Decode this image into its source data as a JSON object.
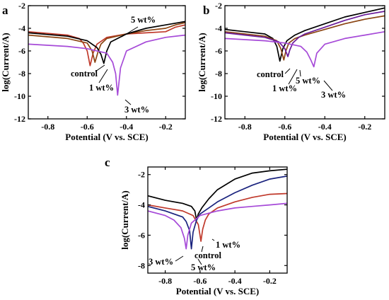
{
  "chart_data": [
    {
      "type": "line",
      "panel_label": "a",
      "xlabel": "Potential (V vs. SCE)",
      "ylabel": "log(Current/A)",
      "xlim": [
        -0.9,
        -0.1
      ],
      "ylim": [
        -12,
        -2
      ],
      "xticks": [
        -0.8,
        -0.6,
        -0.4,
        -0.2
      ],
      "xtick_labels": [
        "-0.8",
        "-0.6",
        "-0.4",
        "-0.2"
      ],
      "yticks": [
        -12,
        -10,
        -8,
        -6,
        -4,
        -2
      ],
      "ytick_labels": [
        "-12",
        "-10",
        "-8",
        "-6",
        "-4",
        "-2"
      ],
      "grid": false,
      "series": [
        {
          "name": "control",
          "color": "#c0392b",
          "x": [
            -0.9,
            -0.8,
            -0.7,
            -0.64,
            -0.62,
            -0.6,
            -0.585,
            -0.57,
            -0.55,
            -0.5,
            -0.4,
            -0.3,
            -0.2,
            -0.15,
            -0.1
          ],
          "y": [
            -4.3,
            -4.45,
            -4.6,
            -4.9,
            -5.3,
            -6.0,
            -7.3,
            -6.2,
            -5.4,
            -4.8,
            -4.5,
            -4.4,
            -4.3,
            -3.9,
            -3.7
          ]
        },
        {
          "name": "1 wt%",
          "color": "#8b4513",
          "x": [
            -0.9,
            -0.8,
            -0.7,
            -0.6,
            -0.575,
            -0.56,
            -0.545,
            -0.53,
            -0.5,
            -0.4,
            -0.3,
            -0.2,
            -0.15,
            -0.1
          ],
          "y": [
            -4.6,
            -4.75,
            -4.9,
            -5.3,
            -6.0,
            -7.0,
            -6.1,
            -5.4,
            -4.9,
            -4.5,
            -4.2,
            -4.0,
            -3.7,
            -3.5
          ]
        },
        {
          "name": "5 wt%",
          "color": "#000000",
          "x": [
            -0.9,
            -0.8,
            -0.7,
            -0.6,
            -0.55,
            -0.53,
            -0.515,
            -0.5,
            -0.48,
            -0.4,
            -0.3,
            -0.2,
            -0.1
          ],
          "y": [
            -4.4,
            -4.55,
            -4.7,
            -5.1,
            -5.7,
            -6.3,
            -7.1,
            -6.0,
            -5.2,
            -4.5,
            -4.0,
            -3.7,
            -3.4
          ]
        },
        {
          "name": "3 wt%",
          "color": "#a64ad8",
          "x": [
            -0.9,
            -0.8,
            -0.7,
            -0.6,
            -0.5,
            -0.47,
            -0.455,
            -0.445,
            -0.43,
            -0.4,
            -0.3,
            -0.2,
            -0.1
          ],
          "y": [
            -5.4,
            -5.5,
            -5.6,
            -5.8,
            -6.2,
            -7.0,
            -8.0,
            -9.9,
            -7.5,
            -6.0,
            -5.2,
            -4.8,
            -4.6
          ]
        }
      ],
      "annotations": [
        "5 wt%",
        "control",
        "1 wt%",
        "3 wt%"
      ]
    },
    {
      "type": "line",
      "panel_label": "b",
      "xlabel": "Potential (V vs. SCE)",
      "ylabel": "log(Current/A)",
      "xlim": [
        -0.9,
        -0.1
      ],
      "ylim": [
        -12,
        -2
      ],
      "xticks": [
        -0.8,
        -0.6,
        -0.4,
        -0.2
      ],
      "xtick_labels": [
        "-0.8",
        "-0.6",
        "-0.4",
        "-0.2"
      ],
      "yticks": [
        -12,
        -10,
        -8,
        -6,
        -4,
        -2
      ],
      "ytick_labels": [
        "-12",
        "-10",
        "-8",
        "-6",
        "-4",
        "-2"
      ],
      "grid": false,
      "series": [
        {
          "name": "control",
          "color": "#000000",
          "x": [
            -0.9,
            -0.8,
            -0.7,
            -0.66,
            -0.64,
            -0.625,
            -0.61,
            -0.59,
            -0.55,
            -0.5,
            -0.4,
            -0.3,
            -0.2,
            -0.1
          ],
          "y": [
            -4.1,
            -4.3,
            -4.5,
            -4.9,
            -5.6,
            -6.9,
            -5.8,
            -5.1,
            -4.6,
            -4.2,
            -3.6,
            -3.0,
            -2.6,
            -2.2
          ]
        },
        {
          "name": "1 wt%",
          "color": "#8b4513",
          "x": [
            -0.9,
            -0.8,
            -0.7,
            -0.64,
            -0.62,
            -0.605,
            -0.595,
            -0.58,
            -0.55,
            -0.5,
            -0.4,
            -0.3,
            -0.2,
            -0.1
          ],
          "y": [
            -4.3,
            -4.5,
            -4.7,
            -5.1,
            -5.8,
            -6.8,
            -6.0,
            -5.3,
            -4.9,
            -4.6,
            -4.1,
            -3.6,
            -3.2,
            -2.9
          ]
        },
        {
          "name": "5 wt%",
          "color": "#6a1b9a",
          "x": [
            -0.9,
            -0.8,
            -0.7,
            -0.63,
            -0.6,
            -0.585,
            -0.575,
            -0.56,
            -0.53,
            -0.5,
            -0.4,
            -0.3,
            -0.2,
            -0.1
          ],
          "y": [
            -4.4,
            -4.6,
            -4.8,
            -5.2,
            -5.8,
            -6.5,
            -5.9,
            -5.3,
            -4.8,
            -4.5,
            -3.9,
            -3.3,
            -2.8,
            -2.5
          ]
        },
        {
          "name": "3 wt%",
          "color": "#a64ad8",
          "x": [
            -0.9,
            -0.8,
            -0.7,
            -0.6,
            -0.52,
            -0.49,
            -0.47,
            -0.455,
            -0.44,
            -0.4,
            -0.3,
            -0.2,
            -0.1
          ],
          "y": [
            -4.9,
            -5.0,
            -5.1,
            -5.3,
            -5.6,
            -6.1,
            -6.8,
            -7.4,
            -6.2,
            -5.4,
            -4.9,
            -4.6,
            -4.3
          ]
        }
      ],
      "annotations": [
        "control",
        "5 wt%",
        "1 wt%",
        "3 wt%"
      ]
    },
    {
      "type": "line",
      "panel_label": "c",
      "xlabel": "Potential (V vs. SCE)",
      "ylabel": "log(Current/A)",
      "xlim": [
        -0.9,
        -0.1
      ],
      "ylim": [
        -8.5,
        -1.5
      ],
      "xticks": [
        -0.8,
        -0.6,
        -0.4,
        -0.2
      ],
      "xtick_labels": [
        "-0.8",
        "-0.6",
        "-0.4",
        "-0.2"
      ],
      "yticks": [
        -8,
        -6,
        -4,
        -2
      ],
      "ytick_labels": [
        "-8",
        "-6",
        "-4",
        "-2"
      ],
      "grid": false,
      "series": [
        {
          "name": "control",
          "color": "#000000",
          "x": [
            -0.9,
            -0.8,
            -0.7,
            -0.65,
            -0.63,
            -0.62,
            -0.61,
            -0.59,
            -0.55,
            -0.5,
            -0.4,
            -0.3,
            -0.2,
            -0.1
          ],
          "y": [
            -3.4,
            -3.7,
            -3.9,
            -4.1,
            -4.4,
            -5.0,
            -4.6,
            -4.2,
            -3.6,
            -3.0,
            -2.3,
            -1.9,
            -1.75,
            -1.65
          ]
        },
        {
          "name": "1 wt%",
          "color": "#c0392b",
          "x": [
            -0.9,
            -0.8,
            -0.7,
            -0.64,
            -0.61,
            -0.595,
            -0.585,
            -0.57,
            -0.55,
            -0.5,
            -0.4,
            -0.3,
            -0.2,
            -0.1
          ],
          "y": [
            -4.0,
            -4.2,
            -4.4,
            -4.7,
            -5.3,
            -6.4,
            -5.6,
            -5.0,
            -4.6,
            -4.2,
            -3.8,
            -3.5,
            -3.3,
            -3.25
          ]
        },
        {
          "name": "5 wt%",
          "color": "#1a237e",
          "x": [
            -0.9,
            -0.8,
            -0.7,
            -0.68,
            -0.66,
            -0.65,
            -0.64,
            -0.62,
            -0.6,
            -0.55,
            -0.5,
            -0.4,
            -0.3,
            -0.2,
            -0.1
          ],
          "y": [
            -4.1,
            -4.4,
            -4.8,
            -5.1,
            -5.7,
            -6.9,
            -5.8,
            -5.0,
            -4.6,
            -4.2,
            -3.8,
            -3.2,
            -2.7,
            -2.3,
            -2.1
          ]
        },
        {
          "name": "3 wt%",
          "color": "#a64ad8",
          "x": [
            -0.9,
            -0.8,
            -0.75,
            -0.71,
            -0.69,
            -0.68,
            -0.67,
            -0.65,
            -0.6,
            -0.5,
            -0.4,
            -0.3,
            -0.2,
            -0.1
          ],
          "y": [
            -4.4,
            -4.7,
            -5.0,
            -5.5,
            -6.2,
            -6.9,
            -6.0,
            -5.2,
            -4.7,
            -4.4,
            -4.2,
            -4.1,
            -4.0,
            -3.9
          ]
        }
      ],
      "annotations": [
        "1 wt%",
        "control",
        "3 wt%",
        "5 wt%"
      ]
    }
  ]
}
